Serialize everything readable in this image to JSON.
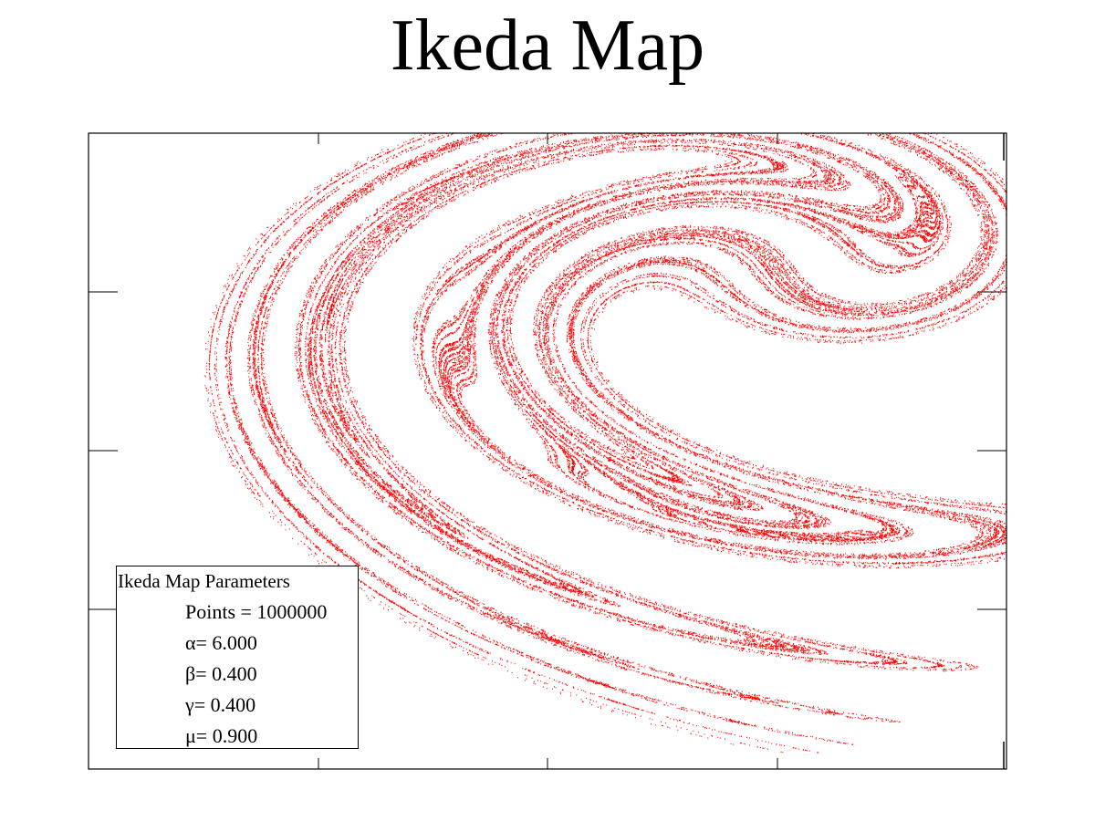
{
  "chart_data": {
    "type": "scatter",
    "title": "Ikeda Map",
    "xlabel": "",
    "ylabel": "",
    "xlim": [
      -0.62,
      1.5
    ],
    "ylim": [
      -2.28,
      0.65
    ],
    "grid": false,
    "series_color": "#ff0000",
    "parameters": {
      "u": 0.9,
      "kappa": 0.4,
      "alpha": 6.0,
      "beta": 0.4,
      "x0": 0.0,
      "y0": 0.0
    },
    "legend": {
      "position": "bottom-left",
      "heading": "Ikeda Map Parameters",
      "lines": [
        "Points = 1000000",
        "α= 6.000",
        "β= 0.400",
        "γ= 0.400",
        "μ= 0.900"
      ]
    }
  }
}
